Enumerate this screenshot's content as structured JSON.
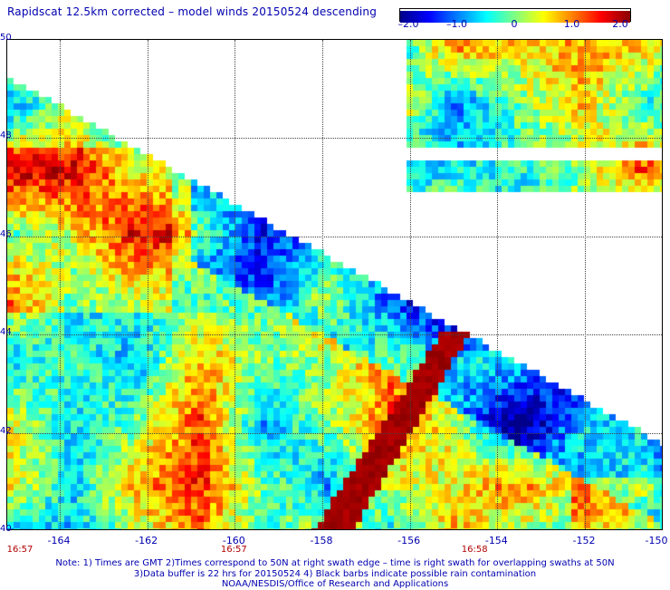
{
  "title": "Rapidscat 12.5km corrected – model winds 20150524 descending",
  "colorbar": {
    "ticks": [
      "–2.0",
      "–1.0",
      "0",
      "1.0",
      "2.0"
    ],
    "tick_values": [
      -2.0,
      -1.0,
      0,
      1.0,
      2.0
    ],
    "colors": [
      "#00008b",
      "#0000ff",
      "#0080ff",
      "#00ffff",
      "#80ff80",
      "#ffff00",
      "#ff8000",
      "#ff0000",
      "#8b0000"
    ]
  },
  "map": {
    "lat_ticks": [
      "40",
      "42",
      "44",
      "46",
      "48",
      "50"
    ],
    "lat_range": [
      40,
      50
    ],
    "lon_ticks": [
      "-164",
      "-162",
      "-160",
      "-158",
      "-156",
      "-154",
      "-152",
      "-150"
    ],
    "lon_range": [
      -165.2,
      -150.2
    ]
  },
  "time_labels": [
    {
      "text": "16:57",
      "lon": -165.0
    },
    {
      "text": "16:57",
      "lon": -160.0
    },
    {
      "text": "16:58",
      "lon": -154.5
    }
  ],
  "notes": [
    "Note: 1) Times are GMT 2)Times correspond to 50N at right swath edge – time is right swath for overlapping swaths at 50N",
    "3)Data buffer is 22 hrs for 20150524 4) Black barbs indicate possible rain contamination",
    "NOAA/NESDIS/Office of Research and Applications"
  ]
}
